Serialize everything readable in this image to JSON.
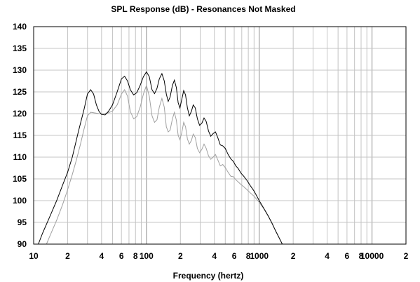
{
  "chart_data": {
    "type": "line",
    "title": "SPL Response (dB) - Resonances Not Masked",
    "xlabel": "Frequency (hertz)",
    "ylabel": "",
    "x_scale": "log",
    "xlim": [
      10,
      20000
    ],
    "ylim": [
      90,
      140
    ],
    "grid": true,
    "legend": "none",
    "y_ticks": [
      "90",
      "95",
      "100",
      "105",
      "110",
      "115",
      "120",
      "125",
      "130",
      "135",
      "140"
    ],
    "x_ticks": [
      {
        "x": 10,
        "label": "10"
      },
      {
        "x": 20,
        "label": "2"
      },
      {
        "x": 40,
        "label": "4"
      },
      {
        "x": 60,
        "label": "6"
      },
      {
        "x": 80,
        "label": "8"
      },
      {
        "x": 100,
        "label": "100"
      },
      {
        "x": 200,
        "label": "2"
      },
      {
        "x": 400,
        "label": "4"
      },
      {
        "x": 600,
        "label": "6"
      },
      {
        "x": 800,
        "label": "8"
      },
      {
        "x": 1000,
        "label": "1000"
      },
      {
        "x": 2000,
        "label": "2"
      },
      {
        "x": 4000,
        "label": "4"
      },
      {
        "x": 6000,
        "label": "6"
      },
      {
        "x": 8000,
        "label": "8"
      },
      {
        "x": 10000,
        "label": "10000"
      },
      {
        "x": 20000,
        "label": "2"
      }
    ],
    "series": [
      {
        "color": "#000000",
        "points": [
          [
            11,
            90
          ],
          [
            12,
            92.5
          ],
          [
            14,
            96.5
          ],
          [
            16,
            100
          ],
          [
            18,
            103.5
          ],
          [
            20,
            106.5
          ],
          [
            22,
            110
          ],
          [
            25,
            116
          ],
          [
            28,
            121
          ],
          [
            30,
            124.5
          ],
          [
            32,
            125.5
          ],
          [
            34,
            124.5
          ],
          [
            36,
            122
          ],
          [
            38,
            120.5
          ],
          [
            40,
            119.8
          ],
          [
            43,
            119.7
          ],
          [
            46,
            120.5
          ],
          [
            50,
            122
          ],
          [
            55,
            125
          ],
          [
            60,
            128
          ],
          [
            64,
            128.6
          ],
          [
            68,
            127.5
          ],
          [
            72,
            125.5
          ],
          [
            77,
            124.3
          ],
          [
            82,
            124.8
          ],
          [
            88,
            126.5
          ],
          [
            94,
            128.5
          ],
          [
            100,
            129.6
          ],
          [
            106,
            128.5
          ],
          [
            112,
            125.5
          ],
          [
            118,
            124.6
          ],
          [
            124,
            125.8
          ],
          [
            130,
            128
          ],
          [
            137,
            129.2
          ],
          [
            144,
            127.5
          ],
          [
            150,
            124.5
          ],
          [
            156,
            122.8
          ],
          [
            162,
            123.8
          ],
          [
            170,
            126.5
          ],
          [
            177,
            127.7
          ],
          [
            184,
            126
          ],
          [
            191,
            122.5
          ],
          [
            198,
            121.3
          ],
          [
            206,
            123.3
          ],
          [
            214,
            125.3
          ],
          [
            222,
            124.3
          ],
          [
            231,
            121.3
          ],
          [
            240,
            119.5
          ],
          [
            250,
            120.5
          ],
          [
            260,
            122
          ],
          [
            271,
            121.3
          ],
          [
            283,
            118.8
          ],
          [
            296,
            117.3
          ],
          [
            310,
            117.8
          ],
          [
            324,
            119
          ],
          [
            339,
            118.2
          ],
          [
            355,
            116
          ],
          [
            372,
            114.8
          ],
          [
            390,
            115.4
          ],
          [
            409,
            115.8
          ],
          [
            430,
            114.4
          ],
          [
            452,
            112.8
          ],
          [
            475,
            112.6
          ],
          [
            500,
            112
          ],
          [
            530,
            110.6
          ],
          [
            560,
            109.6
          ],
          [
            590,
            109
          ],
          [
            620,
            108
          ],
          [
            650,
            107.4
          ],
          [
            690,
            106.3
          ],
          [
            730,
            105.6
          ],
          [
            780,
            104.6
          ],
          [
            830,
            103.5
          ],
          [
            900,
            102.2
          ],
          [
            1000,
            100
          ],
          [
            1100,
            98.2
          ],
          [
            1200,
            96.5
          ],
          [
            1300,
            94.8
          ],
          [
            1400,
            93
          ],
          [
            1500,
            91.5
          ],
          [
            1600,
            90
          ]
        ]
      },
      {
        "color": "#a0a0a0",
        "points": [
          [
            13,
            90
          ],
          [
            14,
            92
          ],
          [
            16,
            95.5
          ],
          [
            18,
            99
          ],
          [
            20,
            102.5
          ],
          [
            22,
            106
          ],
          [
            24,
            109.5
          ],
          [
            26,
            113
          ],
          [
            28,
            116.5
          ],
          [
            30,
            119.5
          ],
          [
            32,
            120.3
          ],
          [
            34,
            120.2
          ],
          [
            38,
            120
          ],
          [
            42,
            120
          ],
          [
            46,
            120.2
          ],
          [
            50,
            120.6
          ],
          [
            55,
            122
          ],
          [
            60,
            124.5
          ],
          [
            64,
            125.5
          ],
          [
            68,
            124
          ],
          [
            72,
            120.5
          ],
          [
            77,
            118.8
          ],
          [
            82,
            119.3
          ],
          [
            88,
            121.5
          ],
          [
            94,
            124.5
          ],
          [
            100,
            126.5
          ],
          [
            106,
            124
          ],
          [
            112,
            119.5
          ],
          [
            118,
            118
          ],
          [
            124,
            118.6
          ],
          [
            130,
            121.5
          ],
          [
            137,
            123.5
          ],
          [
            144,
            121.5
          ],
          [
            150,
            117
          ],
          [
            156,
            115.8
          ],
          [
            162,
            116.2
          ],
          [
            170,
            118.8
          ],
          [
            177,
            120.3
          ],
          [
            184,
            118.5
          ],
          [
            191,
            115
          ],
          [
            198,
            114
          ],
          [
            206,
            115.7
          ],
          [
            214,
            118
          ],
          [
            222,
            117
          ],
          [
            231,
            114.2
          ],
          [
            240,
            113
          ],
          [
            250,
            113.8
          ],
          [
            260,
            115.3
          ],
          [
            271,
            114.5
          ],
          [
            283,
            112
          ],
          [
            296,
            111
          ],
          [
            310,
            111.8
          ],
          [
            324,
            113
          ],
          [
            339,
            112
          ],
          [
            355,
            110.3
          ],
          [
            372,
            109.5
          ],
          [
            390,
            110
          ],
          [
            409,
            110.6
          ],
          [
            430,
            109.3
          ],
          [
            452,
            108
          ],
          [
            475,
            108.3
          ],
          [
            500,
            107.6
          ],
          [
            530,
            106.5
          ],
          [
            560,
            105.6
          ],
          [
            590,
            105.5
          ],
          [
            620,
            104.8
          ],
          [
            650,
            104.3
          ],
          [
            690,
            103.7
          ],
          [
            730,
            103.2
          ],
          [
            780,
            102.5
          ],
          [
            830,
            101.8
          ],
          [
            900,
            101
          ],
          [
            1000,
            99.6
          ],
          [
            1100,
            98.1
          ],
          [
            1200,
            96.4
          ],
          [
            1300,
            94.7
          ],
          [
            1400,
            93
          ],
          [
            1500,
            91.4
          ],
          [
            1600,
            90
          ]
        ]
      }
    ]
  }
}
